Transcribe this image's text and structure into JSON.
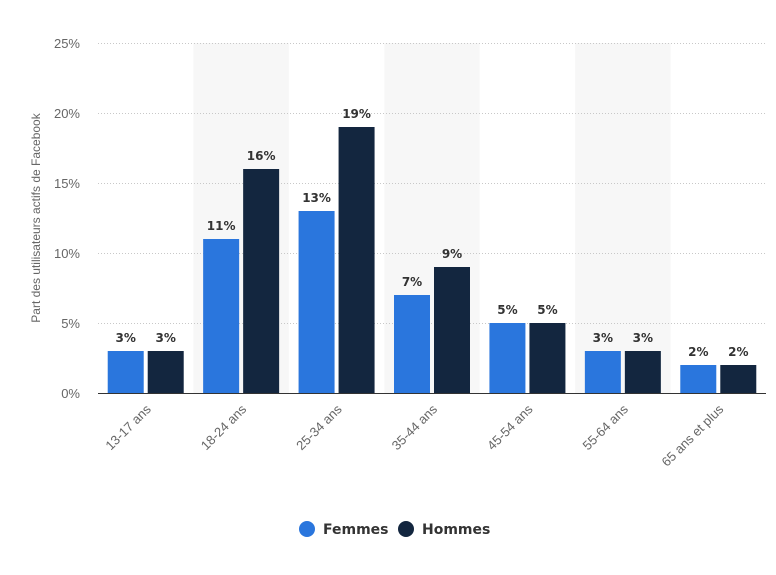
{
  "chart_data": {
    "type": "bar",
    "categories": [
      "13-17 ans",
      "18-24 ans",
      "25-34 ans",
      "35-44 ans",
      "45-54 ans",
      "55-64 ans",
      "65 ans et plus"
    ],
    "series": [
      {
        "name": "Femmes",
        "values": [
          3,
          11,
          13,
          7,
          5,
          3,
          2
        ],
        "color": "#2a76dd",
        "labels": [
          "3%",
          "11%",
          "13%",
          "7%",
          "5%",
          "3%",
          "2%"
        ]
      },
      {
        "name": "Hommes",
        "values": [
          3,
          16,
          19,
          9,
          5,
          3,
          2
        ],
        "color": "#13263f",
        "labels": [
          "3%",
          "16%",
          "19%",
          "9%",
          "5%",
          "3%",
          "2%"
        ]
      }
    ],
    "ylabel": "Part des utilisateurs actifs de Facebook",
    "xlabel": "",
    "ylim": [
      0,
      25
    ],
    "yticks": [
      0,
      5,
      10,
      15,
      20,
      25
    ],
    "ytick_labels": [
      "0%",
      "5%",
      "10%",
      "15%",
      "20%",
      "25%"
    ],
    "grid": "horizontal-dotted",
    "alternate_band_color": "#f7f7f7",
    "legend_position": "bottom-center"
  }
}
